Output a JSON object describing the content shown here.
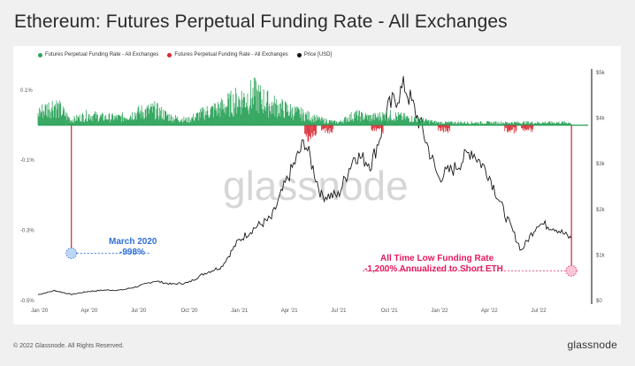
{
  "title": "Ethereum: Futures Perpetual Funding Rate - All Exchanges",
  "legend": [
    {
      "label": "Futures Perpetual Funding Rate - All Exchanges",
      "color": "#2fa45c"
    },
    {
      "label": "Futures Perpetual Funding Rate - All Exchanges",
      "color": "#d72631"
    },
    {
      "label": "Price [USD]",
      "color": "#111111"
    }
  ],
  "watermark": "glassnode",
  "annotations": {
    "march_title": "March 2020",
    "march_value": "-998%",
    "atl_title": "All Time Low Funding Rate",
    "atl_value": "-1,200% Annualized to Short ETH"
  },
  "footer": {
    "copyright": "© 2022 Glassnode. All Rights Reserved.",
    "brand": "glassnode"
  },
  "chart_data": {
    "type": "line",
    "x_ticks": [
      "Jan '20",
      "Apr '20",
      "Jul '20",
      "Oct '20",
      "Jan '21",
      "Apr '21",
      "Jul '21",
      "Oct '21",
      "Jan '22",
      "Apr '22",
      "Jul '22"
    ],
    "left_axis_ticks": [
      "0.1%",
      "-0.1%",
      "-0.3%",
      "-0.5%"
    ],
    "right_axis_ticks": [
      "$5k",
      "$4k",
      "$3k",
      "$2k",
      "$1k",
      "$0"
    ],
    "funding_ylim": [
      -0.5,
      0.15
    ],
    "price_ylim": [
      0,
      5000
    ],
    "series": [
      {
        "name": "Price [USD]",
        "color": "#111111",
        "x": [
          "2020-01",
          "2020-02",
          "2020-03",
          "2020-04",
          "2020-05",
          "2020-06",
          "2020-07",
          "2020-08",
          "2020-09",
          "2020-10",
          "2020-11",
          "2020-12",
          "2021-01",
          "2021-02",
          "2021-03",
          "2021-04",
          "2021-05",
          "2021-06",
          "2021-07",
          "2021-08",
          "2021-09",
          "2021-10",
          "2021-11",
          "2021-12",
          "2022-01",
          "2022-02",
          "2022-03",
          "2022-04",
          "2022-05",
          "2022-06",
          "2022-07",
          "2022-08",
          "2022-09"
        ],
        "values": [
          130,
          220,
          135,
          200,
          230,
          230,
          310,
          430,
          360,
          390,
          600,
          740,
          1300,
          1600,
          1800,
          2700,
          3500,
          2300,
          2300,
          3200,
          3000,
          4200,
          4700,
          3800,
          2700,
          2900,
          3300,
          2800,
          1900,
          1100,
          1700,
          1600,
          1350
        ]
      },
      {
        "name": "Futures Perpetual Funding Rate - All Exchanges",
        "color": "#2fa45c",
        "x": [
          "2020-01",
          "2020-02",
          "2020-03",
          "2020-04",
          "2020-05",
          "2020-06",
          "2020-07",
          "2020-08",
          "2020-09",
          "2020-10",
          "2020-11",
          "2020-12",
          "2021-01",
          "2021-02",
          "2021-03",
          "2021-04",
          "2021-05",
          "2021-06",
          "2021-07",
          "2021-08",
          "2021-09",
          "2021-10",
          "2021-11",
          "2021-12",
          "2022-01",
          "2022-02",
          "2022-03",
          "2022-04",
          "2022-05",
          "2022-06",
          "2022-07",
          "2022-08",
          "2022-09"
        ],
        "values": [
          0.05,
          0.08,
          0.02,
          0.04,
          0.03,
          0.03,
          0.05,
          0.06,
          0.03,
          0.02,
          0.05,
          0.07,
          0.1,
          0.12,
          0.08,
          0.06,
          0.04,
          0.02,
          0.01,
          0.04,
          0.03,
          0.04,
          0.03,
          0.02,
          0.01,
          0.01,
          0.01,
          0.01,
          0.01,
          0.01,
          0.01,
          0.01,
          0.01
        ]
      },
      {
        "name": "Futures Perpetual Funding Rate - All Exchanges",
        "color": "#d72631",
        "x": [
          "2020-03",
          "2021-05",
          "2021-06",
          "2021-09",
          "2022-01",
          "2022-05",
          "2022-06",
          "2022-09"
        ],
        "values": [
          -0.36,
          -0.04,
          -0.02,
          -0.02,
          -0.02,
          -0.02,
          -0.02,
          -0.41
        ]
      }
    ]
  }
}
